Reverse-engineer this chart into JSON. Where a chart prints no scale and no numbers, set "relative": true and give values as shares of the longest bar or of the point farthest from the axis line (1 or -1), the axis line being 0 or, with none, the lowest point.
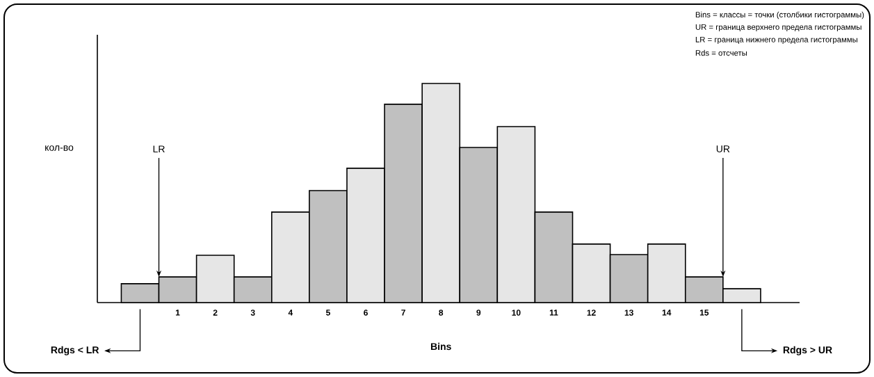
{
  "chart_data": {
    "type": "bar",
    "relative": true,
    "xlabel": "Bins",
    "ylabel": "кол-во",
    "categories": [
      null,
      "1",
      "2",
      "3",
      "4",
      "5",
      "6",
      "7",
      "8",
      "9",
      "10",
      "11",
      "12",
      "13",
      "14",
      "15",
      null
    ],
    "values": [
      0.086,
      0.117,
      0.216,
      0.117,
      0.413,
      0.511,
      0.613,
      0.905,
      1,
      0.708,
      0.803,
      0.413,
      0.267,
      0.219,
      0.267,
      0.117,
      0.063
    ],
    "colors": [
      "#c0c0c0",
      "#c0c0c0",
      "#e6e6e6",
      "#c0c0c0",
      "#e6e6e6",
      "#c0c0c0",
      "#e6e6e6",
      "#c0c0c0",
      "#e6e6e6",
      "#c0c0c0",
      "#e6e6e6",
      "#c0c0c0",
      "#e6e6e6",
      "#c0c0c0",
      "#e6e6e6",
      "#c0c0c0",
      "#e6e6e6"
    ],
    "annotations": [
      "Bins = классы = точки (столбики гистограммы)",
      "UR = граница верхнего предела гистограммы",
      "LR = граница нижнего предела гистограммы",
      "Rds = отсчеты",
      "LR",
      "UR",
      "Rdgs < LR",
      "Rdgs > UR"
    ]
  }
}
